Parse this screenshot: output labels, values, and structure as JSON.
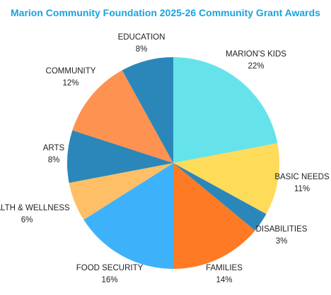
{
  "chart_data": {
    "type": "pie",
    "title": "Marion Community Foundation 2025-26 Community Grant Awards",
    "slices": [
      {
        "label": "MARION'S KIDS",
        "value_text": "22%",
        "value": 22,
        "color": "#66e3ea"
      },
      {
        "label": "BASIC NEEDS",
        "value_text": "11%",
        "value": 11,
        "color": "#ffdb5a"
      },
      {
        "label": "DISABILITIES",
        "value_text": "3%",
        "value": 3,
        "color": "#2b87b9"
      },
      {
        "label": "FAMILIES",
        "value_text": "14%",
        "value": 14,
        "color": "#fe7a24"
      },
      {
        "label": "FOOD SECURITY",
        "value_text": "16%",
        "value": 16,
        "color": "#3db2fb"
      },
      {
        "label": "HEALTH & WELLNESS",
        "value_text": "6%",
        "value": 6,
        "color": "#ffbf66"
      },
      {
        "label": "ARTS",
        "value_text": "8%",
        "value": 8,
        "color": "#2b87b9"
      },
      {
        "label": "COMMUNITY",
        "value_text": "12%",
        "value": 12,
        "color": "#fe9250"
      },
      {
        "label": "EDUCATION",
        "value_text": "8%",
        "value": 8,
        "color": "#2b87b9"
      }
    ]
  }
}
